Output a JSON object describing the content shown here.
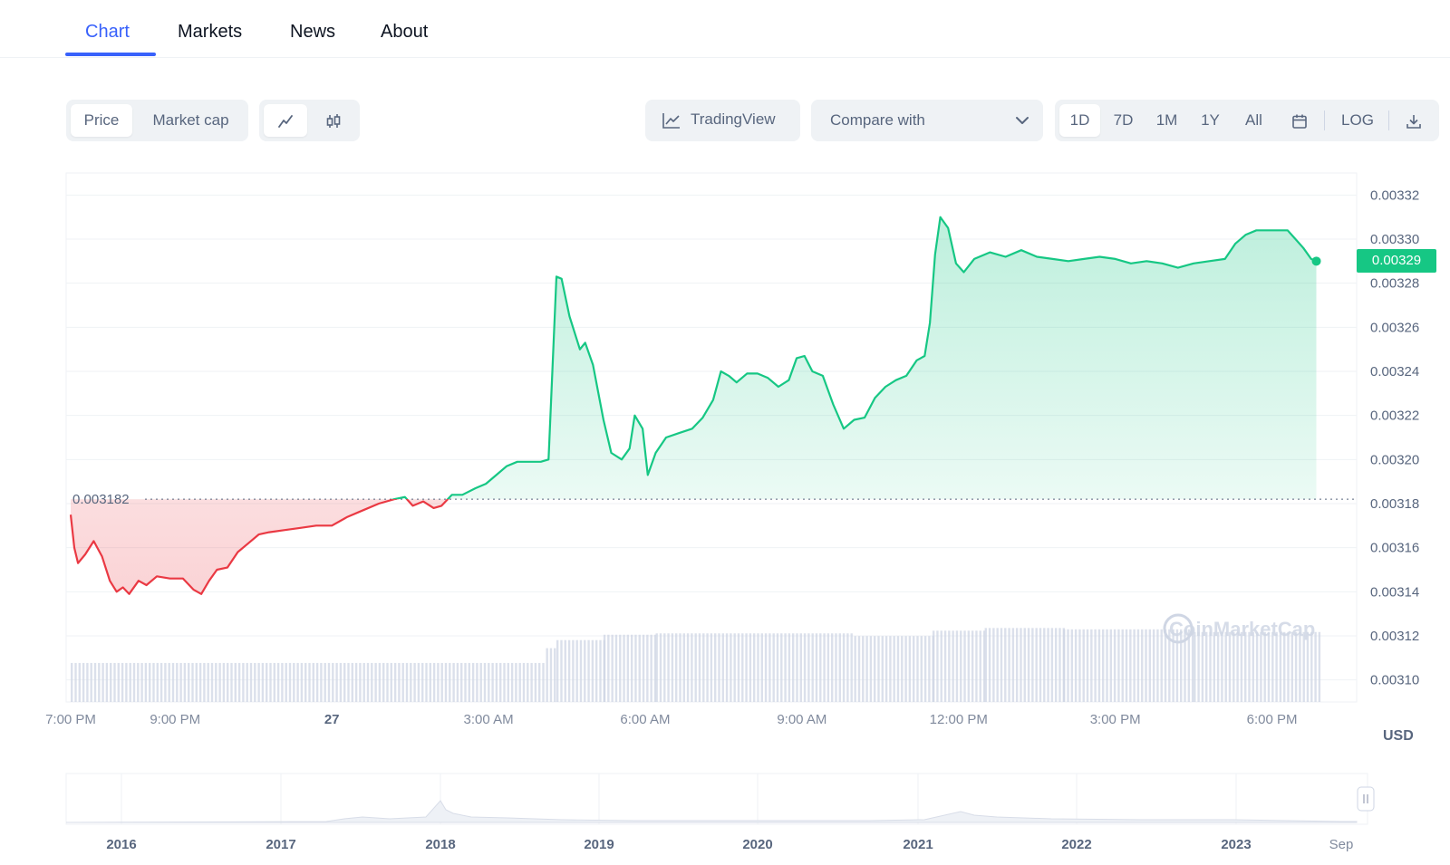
{
  "tabs": [
    {
      "label": "Chart",
      "active": true
    },
    {
      "label": "Markets",
      "active": false
    },
    {
      "label": "News",
      "active": false
    },
    {
      "label": "About",
      "active": false
    }
  ],
  "toolbar": {
    "metric": {
      "price": "Price",
      "market_cap": "Market cap",
      "selected": "Price"
    },
    "chart_style": {
      "line_icon": "line-chart-icon",
      "candle_icon": "candlestick-icon",
      "selected": "line"
    },
    "tradingview": "TradingView",
    "compare": {
      "placeholder": "Compare with"
    },
    "ranges": [
      "1D",
      "7D",
      "1M",
      "1Y",
      "All"
    ],
    "selected_range": "1D",
    "calendar_icon": "calendar-icon",
    "log_label": "LOG",
    "download_icon": "download-icon"
  },
  "colors": {
    "accent": "#3861fb",
    "up": "#16c784",
    "down": "#ea3943",
    "grid": "#eff2f5",
    "muted": "#58667e",
    "volume": "#cfd6e4"
  },
  "chart_data": {
    "type": "line",
    "baseline": {
      "value": 0.003182,
      "label": "0.003182"
    },
    "current_price": {
      "value": 0.00329,
      "label": "0.00329"
    },
    "currency_label": "USD",
    "ylim": [
      0.00309,
      0.00333
    ],
    "y_ticks": [
      "0.00310",
      "0.00312",
      "0.00314",
      "0.00316",
      "0.00318",
      "0.00320",
      "0.00322",
      "0.00324",
      "0.00326",
      "0.00328",
      "0.00330",
      "0.00332"
    ],
    "x_ticks": [
      {
        "label": "7:00 PM",
        "t": 0,
        "bold": false
      },
      {
        "label": "9:00 PM",
        "t": 2,
        "bold": false
      },
      {
        "label": "27",
        "t": 5,
        "bold": true
      },
      {
        "label": "3:00 AM",
        "t": 8,
        "bold": false
      },
      {
        "label": "6:00 AM",
        "t": 11,
        "bold": false
      },
      {
        "label": "9:00 AM",
        "t": 14,
        "bold": false
      },
      {
        "label": "12:00 PM",
        "t": 17,
        "bold": false
      },
      {
        "label": "3:00 PM",
        "t": 20,
        "bold": false
      },
      {
        "label": "6:00 PM",
        "t": 23,
        "bold": false
      }
    ],
    "xlim": [
      0,
      24.5
    ],
    "watermark": "CoinMarketCap",
    "series": [
      {
        "name": "Price",
        "points": [
          [
            0.0,
            0.003175
          ],
          [
            0.07,
            0.00316
          ],
          [
            0.14,
            0.003153
          ],
          [
            0.28,
            0.003157
          ],
          [
            0.44,
            0.003163
          ],
          [
            0.6,
            0.003156
          ],
          [
            0.75,
            0.003145
          ],
          [
            0.88,
            0.00314
          ],
          [
            1.0,
            0.003142
          ],
          [
            1.12,
            0.003139
          ],
          [
            1.3,
            0.003145
          ],
          [
            1.45,
            0.003143
          ],
          [
            1.65,
            0.003147
          ],
          [
            1.9,
            0.003146
          ],
          [
            2.15,
            0.003146
          ],
          [
            2.35,
            0.003141
          ],
          [
            2.5,
            0.003139
          ],
          [
            2.65,
            0.003145
          ],
          [
            2.8,
            0.00315
          ],
          [
            3.0,
            0.003151
          ],
          [
            3.2,
            0.003158
          ],
          [
            3.4,
            0.003162
          ],
          [
            3.6,
            0.003166
          ],
          [
            3.8,
            0.003167
          ],
          [
            4.1,
            0.003168
          ],
          [
            4.4,
            0.003169
          ],
          [
            4.7,
            0.00317
          ],
          [
            5.0,
            0.00317
          ],
          [
            5.3,
            0.003174
          ],
          [
            5.6,
            0.003177
          ],
          [
            5.9,
            0.00318
          ],
          [
            6.2,
            0.003182
          ],
          [
            6.4,
            0.003183
          ],
          [
            6.55,
            0.003179
          ],
          [
            6.75,
            0.003181
          ],
          [
            6.95,
            0.003178
          ],
          [
            7.1,
            0.003179
          ],
          [
            7.3,
            0.003184
          ],
          [
            7.5,
            0.003184
          ],
          [
            7.75,
            0.003187
          ],
          [
            7.95,
            0.003189
          ],
          [
            8.15,
            0.003193
          ],
          [
            8.35,
            0.003197
          ],
          [
            8.55,
            0.003199
          ],
          [
            8.8,
            0.003199
          ],
          [
            9.0,
            0.003199
          ],
          [
            9.15,
            0.0032
          ],
          [
            9.3,
            0.003283
          ],
          [
            9.4,
            0.003282
          ],
          [
            9.55,
            0.003265
          ],
          [
            9.75,
            0.00325
          ],
          [
            9.85,
            0.003253
          ],
          [
            10.0,
            0.003243
          ],
          [
            10.2,
            0.003218
          ],
          [
            10.35,
            0.003203
          ],
          [
            10.55,
            0.0032
          ],
          [
            10.7,
            0.003205
          ],
          [
            10.8,
            0.00322
          ],
          [
            10.95,
            0.003214
          ],
          [
            11.05,
            0.003193
          ],
          [
            11.2,
            0.003203
          ],
          [
            11.4,
            0.00321
          ],
          [
            11.65,
            0.003212
          ],
          [
            11.9,
            0.003214
          ],
          [
            12.1,
            0.003219
          ],
          [
            12.3,
            0.003227
          ],
          [
            12.45,
            0.00324
          ],
          [
            12.6,
            0.003238
          ],
          [
            12.75,
            0.003235
          ],
          [
            12.95,
            0.003239
          ],
          [
            13.15,
            0.003239
          ],
          [
            13.35,
            0.003237
          ],
          [
            13.55,
            0.003233
          ],
          [
            13.75,
            0.003236
          ],
          [
            13.9,
            0.003246
          ],
          [
            14.05,
            0.003247
          ],
          [
            14.2,
            0.00324
          ],
          [
            14.4,
            0.003238
          ],
          [
            14.6,
            0.003225
          ],
          [
            14.8,
            0.003214
          ],
          [
            15.0,
            0.003218
          ],
          [
            15.2,
            0.003219
          ],
          [
            15.4,
            0.003228
          ],
          [
            15.6,
            0.003233
          ],
          [
            15.8,
            0.003236
          ],
          [
            16.0,
            0.003238
          ],
          [
            16.2,
            0.003245
          ],
          [
            16.35,
            0.003247
          ],
          [
            16.45,
            0.003262
          ],
          [
            16.55,
            0.003293
          ],
          [
            16.65,
            0.00331
          ],
          [
            16.8,
            0.003305
          ],
          [
            16.95,
            0.003289
          ],
          [
            17.1,
            0.003285
          ],
          [
            17.3,
            0.003291
          ],
          [
            17.6,
            0.003294
          ],
          [
            17.9,
            0.003292
          ],
          [
            18.2,
            0.003295
          ],
          [
            18.5,
            0.003292
          ],
          [
            18.8,
            0.003291
          ],
          [
            19.1,
            0.00329
          ],
          [
            19.4,
            0.003291
          ],
          [
            19.7,
            0.003292
          ],
          [
            20.0,
            0.003291
          ],
          [
            20.3,
            0.003289
          ],
          [
            20.6,
            0.00329
          ],
          [
            20.9,
            0.003289
          ],
          [
            21.2,
            0.003287
          ],
          [
            21.5,
            0.003289
          ],
          [
            21.8,
            0.00329
          ],
          [
            22.1,
            0.003291
          ],
          [
            22.3,
            0.003298
          ],
          [
            22.5,
            0.003302
          ],
          [
            22.7,
            0.003304
          ],
          [
            22.9,
            0.003304
          ],
          [
            23.1,
            0.003304
          ],
          [
            23.3,
            0.003304
          ],
          [
            23.45,
            0.0033
          ],
          [
            23.6,
            0.003296
          ],
          [
            23.75,
            0.003291
          ],
          [
            23.85,
            0.00329
          ]
        ]
      },
      {
        "name": "Volume",
        "segments": [
          {
            "from": 0.0,
            "to": 9.1,
            "level": 0.29
          },
          {
            "from": 9.1,
            "to": 9.3,
            "level": 0.4
          },
          {
            "from": 9.3,
            "to": 10.2,
            "level": 0.46
          },
          {
            "from": 10.2,
            "to": 11.2,
            "level": 0.5
          },
          {
            "from": 11.2,
            "to": 15.0,
            "level": 0.51
          },
          {
            "from": 15.0,
            "to": 16.5,
            "level": 0.49
          },
          {
            "from": 16.5,
            "to": 17.5,
            "level": 0.53
          },
          {
            "from": 17.5,
            "to": 19.0,
            "level": 0.55
          },
          {
            "from": 19.0,
            "to": 21.5,
            "level": 0.54
          },
          {
            "from": 21.5,
            "to": 23.9,
            "level": 0.52
          }
        ]
      }
    ]
  },
  "navigator": {
    "years": [
      "2016",
      "2017",
      "2018",
      "2019",
      "2020",
      "2021",
      "2022",
      "2023",
      "Sep"
    ],
    "handle_icon": "drag-handle-icon"
  }
}
